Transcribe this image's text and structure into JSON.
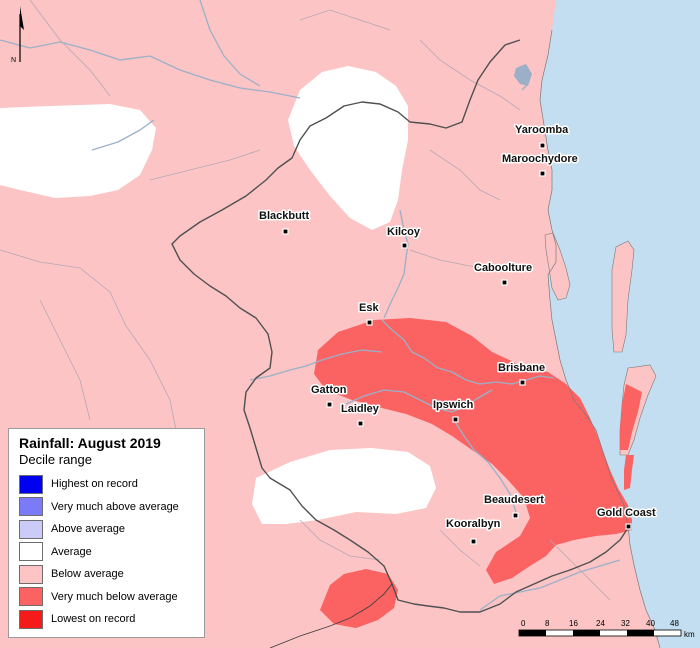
{
  "map": {
    "north_label": "N",
    "colors": {
      "ocean": "#c3def0",
      "below_average": "#fcc4c4",
      "average": "#ffffff",
      "very_much_below": "#fb6262",
      "river": "#9bb0c8",
      "boundary": "#7a7a7a"
    },
    "towns": [
      {
        "name": "Yaroomba"
      },
      {
        "name": "Maroochydore"
      },
      {
        "name": "Blackbutt"
      },
      {
        "name": "Kilcoy"
      },
      {
        "name": "Caboolture"
      },
      {
        "name": "Esk"
      },
      {
        "name": "Brisbane"
      },
      {
        "name": "Gatton"
      },
      {
        "name": "Ipswich"
      },
      {
        "name": "Laidley"
      },
      {
        "name": "Beaudesert"
      },
      {
        "name": "Gold Coast"
      },
      {
        "name": "Kooralbyn"
      }
    ]
  },
  "legend": {
    "title": "Rainfall: August 2019",
    "subtitle": "Decile range",
    "items": [
      {
        "label": "Highest on record",
        "color": "#0000f0"
      },
      {
        "label": "Very much above average",
        "color": "#7b7bf7"
      },
      {
        "label": "Above average",
        "color": "#cbcbf7"
      },
      {
        "label": "Average",
        "color": "#ffffff"
      },
      {
        "label": "Below average",
        "color": "#fcc4c4"
      },
      {
        "label": "Very much below average",
        "color": "#fb6262"
      },
      {
        "label": "Lowest on record",
        "color": "#f61b1b"
      }
    ]
  },
  "scale_bar": {
    "ticks": [
      "0",
      "8",
      "16",
      "24",
      "32",
      "40",
      "48"
    ],
    "unit": "km"
  }
}
